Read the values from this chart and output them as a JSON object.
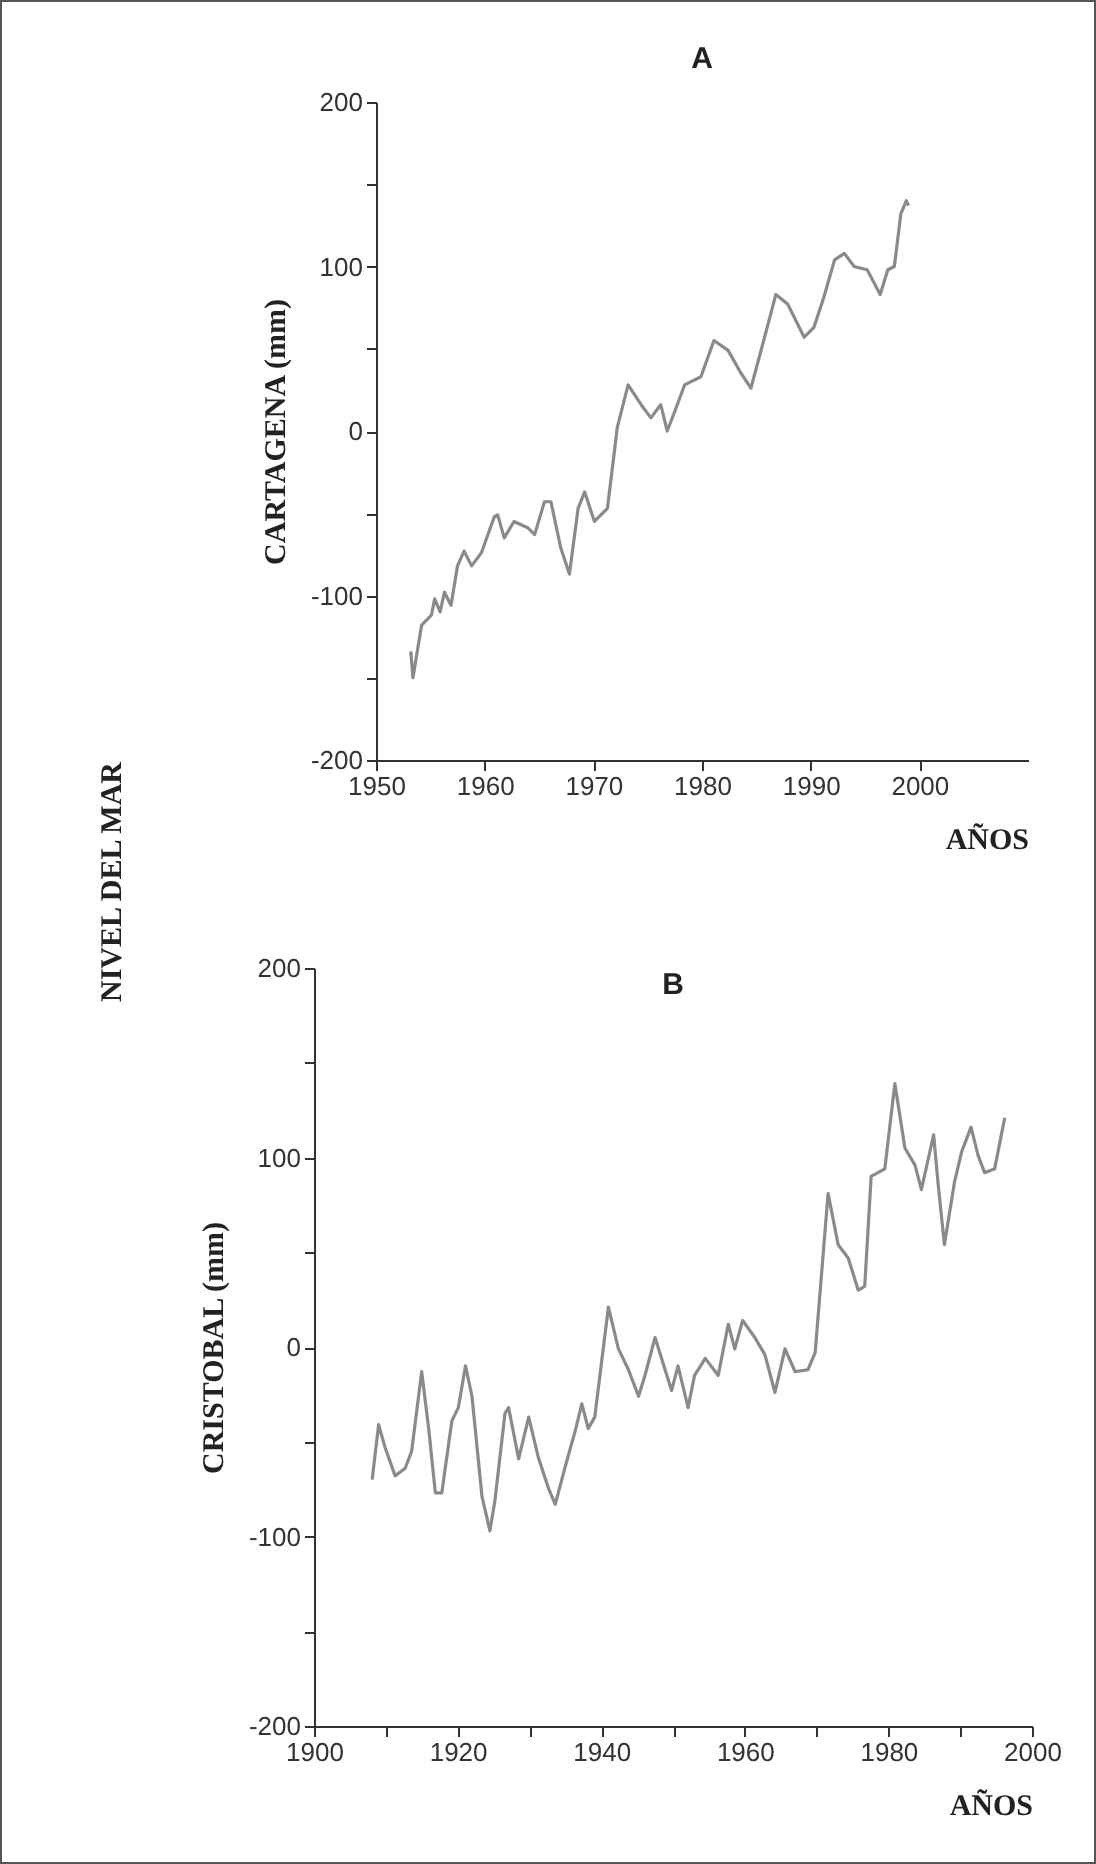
{
  "chart_data": [
    {
      "type": "line",
      "title": "A",
      "xlabel": "AÑOS",
      "ylabel": "CARTAGENA  (mm)",
      "annotations": [
        "NIVEL DEL MAR"
      ],
      "xlim": [
        1950,
        2010
      ],
      "xticks": [
        1950,
        1960,
        1970,
        1980,
        1990,
        2000
      ],
      "ylim": [
        -200,
        200
      ],
      "yticks": [
        -200,
        {
          "value": -150,
          "label": null
        },
        -100,
        {
          "value": -50,
          "label": null
        },
        0,
        {
          "value": 50,
          "label": null
        },
        100,
        {
          "value": 150,
          "label": null
        },
        200
      ],
      "grid": false,
      "marker": "none",
      "line_style": "solid",
      "series": [
        {
          "color": "#8a8a8a",
          "x": [
            1953.2,
            1953.4,
            1954.2,
            1955.1,
            1955.4,
            1955.9,
            1956.3,
            1956.9,
            1957.5,
            1958.1,
            1958.8,
            1959.7,
            1960.9,
            1961.2,
            1961.8,
            1962.7,
            1964.0,
            1964.6,
            1965.5,
            1966.1,
            1967.0,
            1967.8,
            1968.6,
            1969.2,
            1970.1,
            1971.3,
            1972.2,
            1973.2,
            1974.4,
            1975.3,
            1976.2,
            1976.8,
            1977.5,
            1978.4,
            1979.9,
            1981.1,
            1982.4,
            1983.6,
            1984.5,
            1986.0,
            1986.8,
            1987.9,
            1989.4,
            1990.3,
            1991.2,
            1992.2,
            1993.1,
            1994.0,
            1995.2,
            1996.4,
            1997.1,
            1997.7,
            1998.3,
            1998.8,
            1999.0
          ],
          "values": [
            -134,
            -150,
            -118,
            -112,
            -102,
            -110,
            -98,
            -106,
            -82,
            -73,
            -82,
            -74,
            -52,
            -51,
            -65,
            -55,
            -59,
            -63,
            -43,
            -43,
            -71,
            -87,
            -47,
            -37,
            -55,
            -47,
            2,
            28,
            16,
            8,
            16,
            0,
            12,
            28,
            33,
            55,
            49,
            35,
            26,
            63,
            83,
            77,
            57,
            63,
            81,
            104,
            108,
            100,
            98,
            83,
            98,
            100,
            132,
            140,
            137
          ]
        }
      ]
    },
    {
      "type": "line",
      "title": "B",
      "xlabel": "AÑOS",
      "ylabel": "CRISTOBAL  (mm)",
      "xlim": [
        1900,
        2000
      ],
      "xticks": [
        1900,
        {
          "value": 1910,
          "label": null
        },
        1920,
        {
          "value": 1930,
          "label": null
        },
        1940,
        {
          "value": 1950,
          "label": null
        },
        1960,
        {
          "value": 1970,
          "label": null
        },
        1980,
        {
          "value": 1990,
          "label": null
        },
        2000
      ],
      "ylim": [
        -200,
        200
      ],
      "yticks": [
        -200,
        {
          "value": -150,
          "label": null
        },
        -100,
        {
          "value": -50,
          "label": null
        },
        0,
        {
          "value": 50,
          "label": null
        },
        100,
        {
          "value": 150,
          "label": null
        },
        200
      ],
      "grid": false,
      "marker": "none",
      "line_style": "solid",
      "series": [
        {
          "color": "#8a8a8a",
          "x": [
            1908.1,
            1909.0,
            1909.9,
            1911.3,
            1912.7,
            1913.6,
            1915.0,
            1916.0,
            1916.9,
            1917.8,
            1919.2,
            1920.1,
            1921.1,
            1922.0,
            1923.4,
            1924.5,
            1925.2,
            1926.6,
            1927.1,
            1928.5,
            1929.9,
            1931.3,
            1932.7,
            1933.6,
            1935.0,
            1936.4,
            1937.3,
            1938.2,
            1939.1,
            1941.0,
            1942.4,
            1943.8,
            1945.2,
            1946.1,
            1947.5,
            1948.9,
            1949.8,
            1950.7,
            1952.1,
            1953.0,
            1954.5,
            1956.3,
            1957.7,
            1958.6,
            1959.7,
            1961.4,
            1962.8,
            1964.2,
            1965.6,
            1967.0,
            1968.8,
            1969.8,
            1970.7,
            1971.6,
            1973.0,
            1974.4,
            1975.8,
            1976.7,
            1977.6,
            1979.5,
            1980.9,
            1982.3,
            1983.7,
            1984.6,
            1986.3,
            1986.9,
            1987.8,
            1989.2,
            1990.2,
            1991.5,
            1992.5,
            1993.4,
            1994.8,
            1996.2
          ],
          "values": [
            -70,
            -41,
            -53,
            -68,
            -64,
            -55,
            -13,
            -44,
            -77,
            -77,
            -39,
            -32,
            -10,
            -26,
            -79,
            -97,
            -81,
            -35,
            -32,
            -59,
            -37,
            -59,
            -75,
            -83,
            -63,
            -44,
            -30,
            -43,
            -37,
            21,
            -1,
            -12,
            -26,
            -15,
            5,
            -12,
            -23,
            -10,
            -32,
            -15,
            -6,
            -15,
            12,
            -1,
            14,
            5,
            -4,
            -24,
            -1,
            -13,
            -12,
            -3,
            39,
            81,
            54,
            47,
            30,
            32,
            90,
            94,
            139,
            105,
            96,
            83,
            112,
            87,
            54,
            87,
            103,
            116,
            101,
            92,
            94,
            121
          ]
        }
      ]
    }
  ]
}
